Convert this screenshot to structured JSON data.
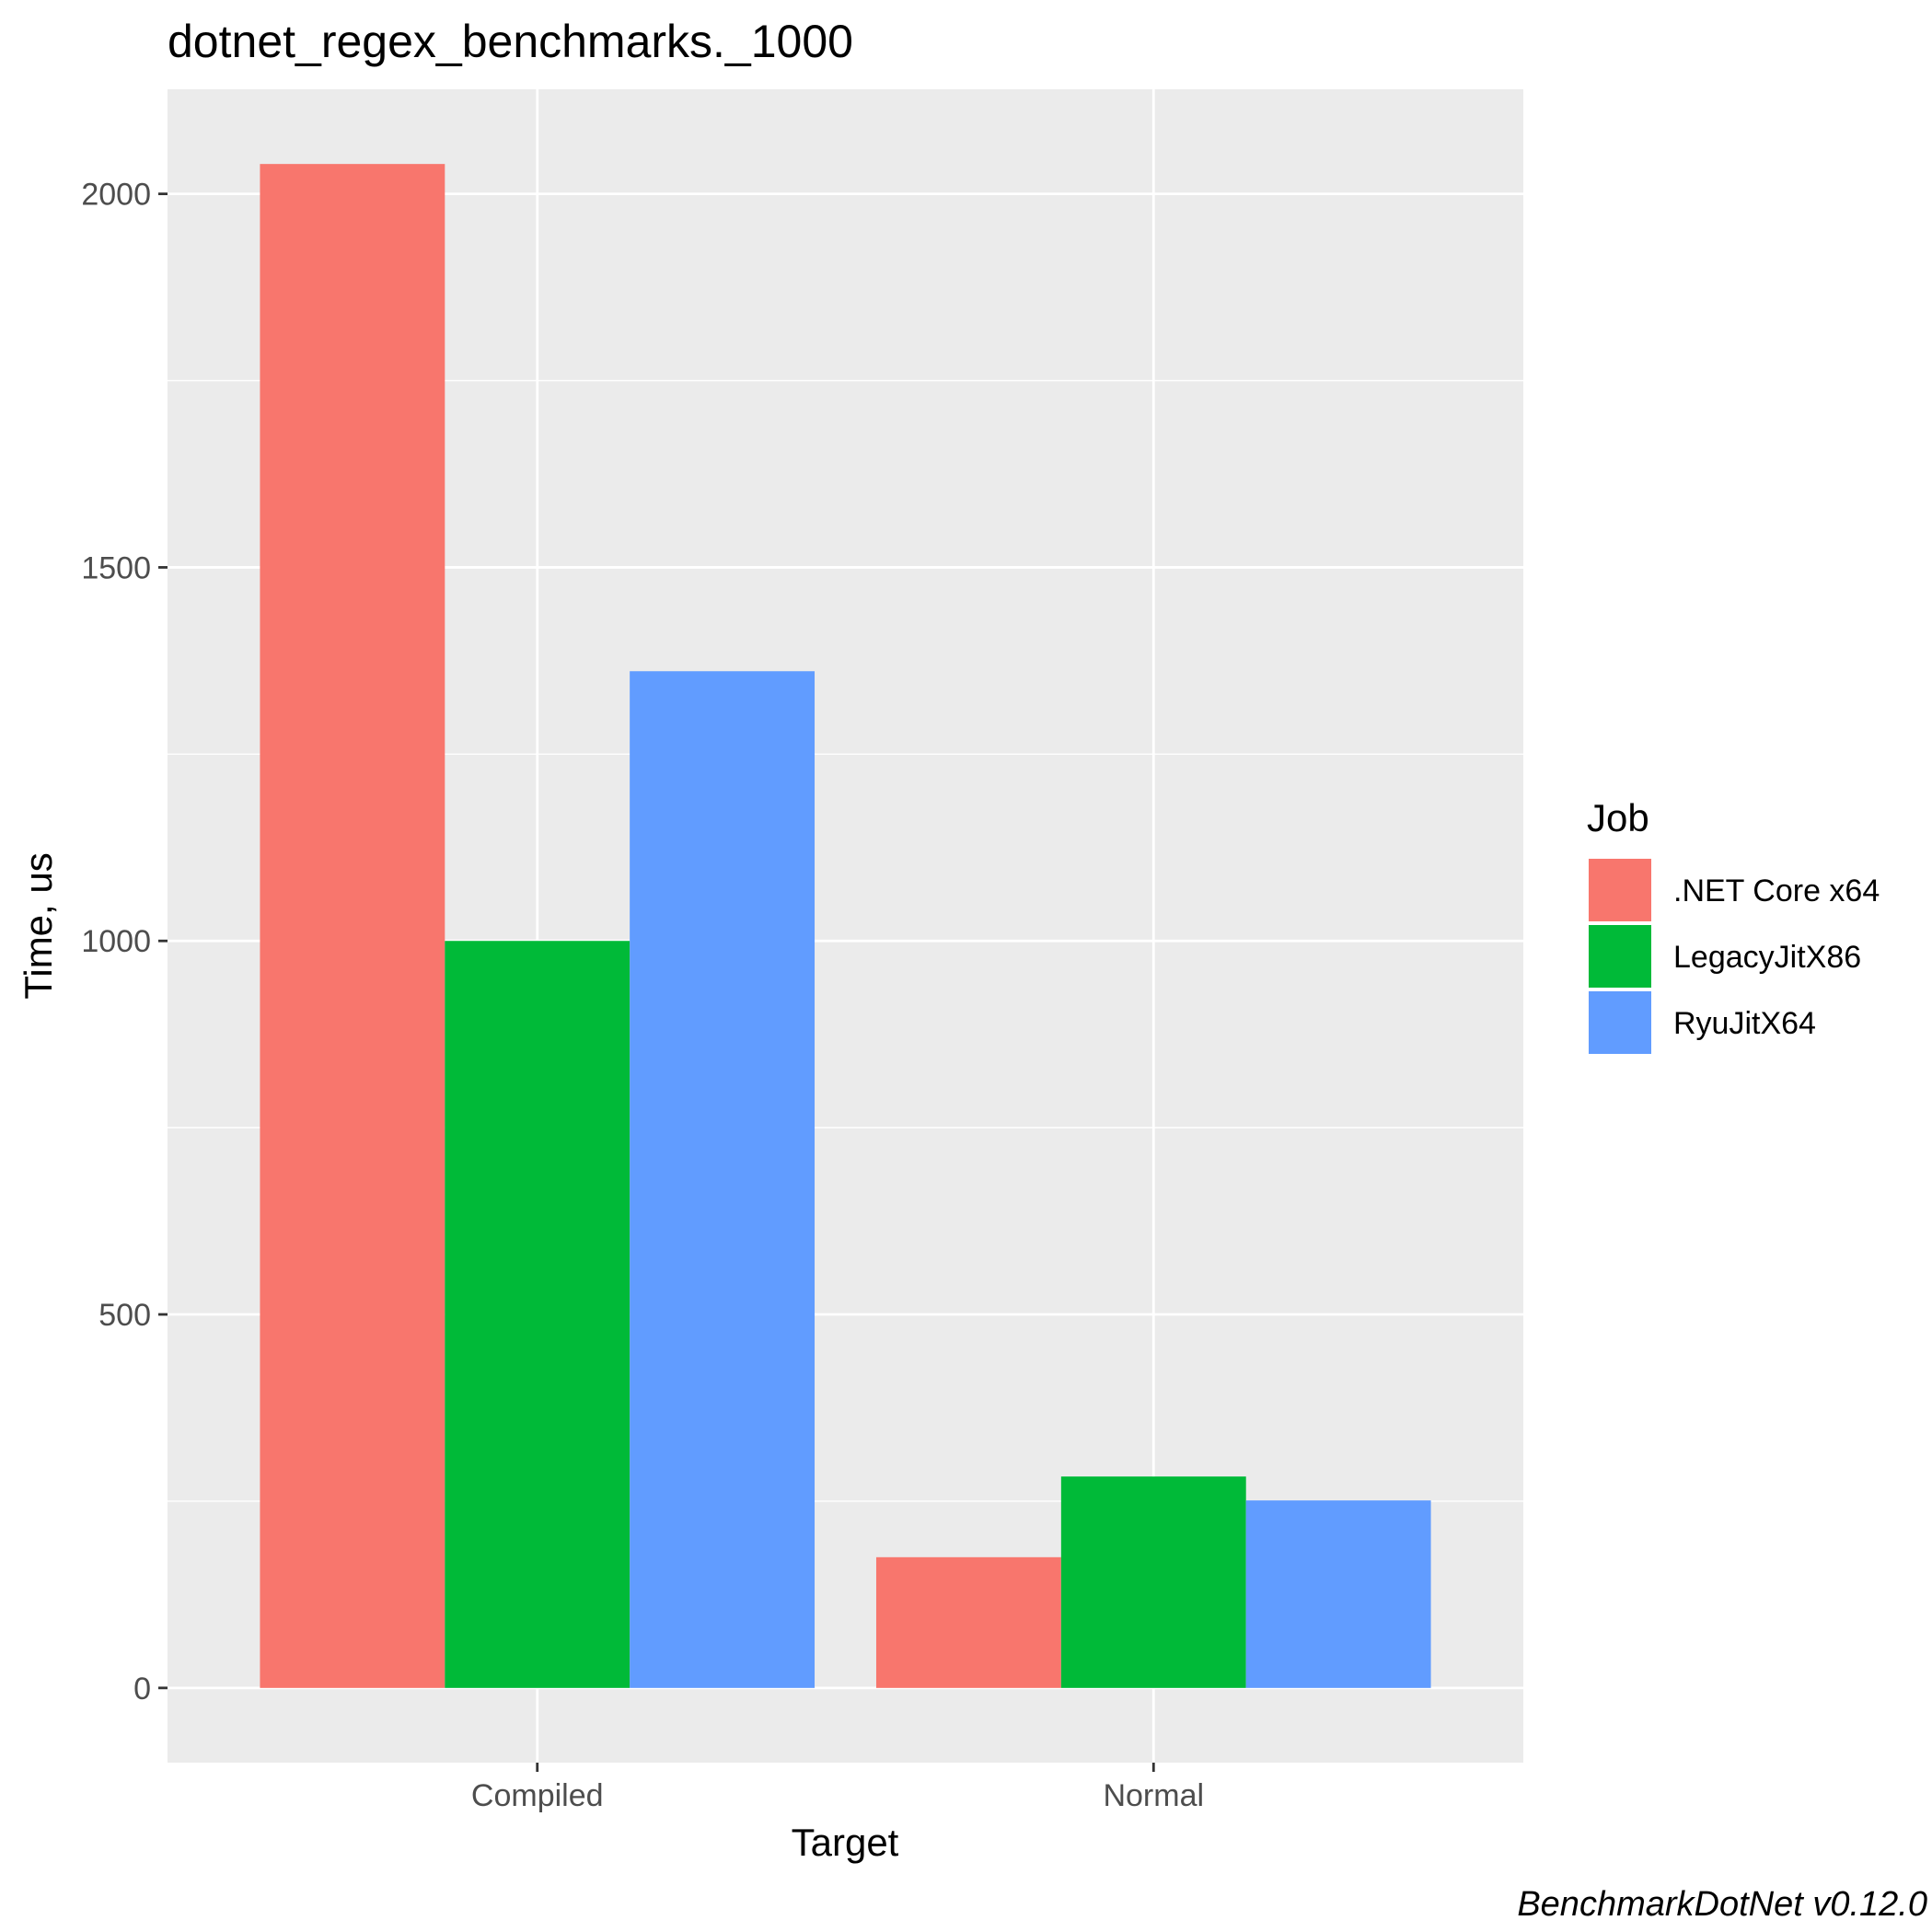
{
  "chart_data": {
    "type": "bar",
    "title": "dotnet_regex_benchmarks._1000",
    "xlabel": "Target",
    "ylabel": "Time, us",
    "categories": [
      "Compiled",
      "Normal"
    ],
    "series": [
      {
        "name": ".NET Core x64",
        "color": "#F8766D",
        "values": [
          2040,
          175
        ]
      },
      {
        "name": "LegacyJitX86",
        "color": "#00BA38",
        "values": [
          1000,
          283
        ]
      },
      {
        "name": "RyuJitX64",
        "color": "#619CFF",
        "values": [
          1361,
          251
        ]
      }
    ],
    "ylim": [
      -100,
      2140
    ],
    "yticks": [
      0,
      500,
      1000,
      1500,
      2000
    ],
    "ytick_labels": [
      "0",
      "500",
      "1000",
      "1500",
      "2000"
    ],
    "grid": true,
    "panel_background": "#EBEBEB",
    "legend": {
      "title": "Job",
      "position": "right"
    },
    "caption": "BenchmarkDotNet v0.12.0"
  }
}
